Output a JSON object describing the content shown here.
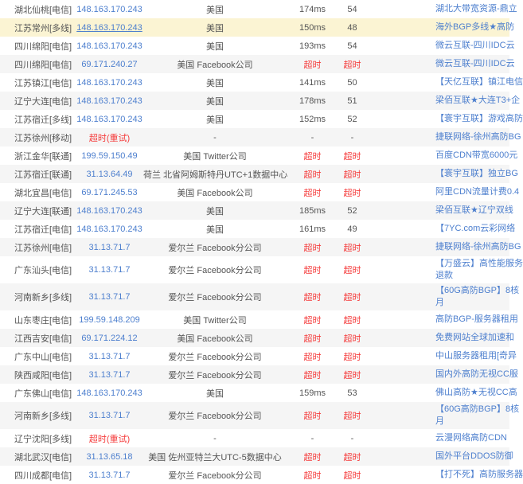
{
  "colors": {
    "link_blue": "#4d7fce",
    "timeout_red": "#f53c3c",
    "row_stripe_gray": "#f5f5f5",
    "row_highlight_yellow": "#fbf4d3",
    "text_gray": "#555555"
  },
  "table": {
    "rows": [
      {
        "monitor": "湖北仙桃[电信]",
        "ip": "148.163.170.243",
        "ip_timeout": false,
        "ip_underline": false,
        "location": "美国",
        "time": "174ms",
        "ttl": "54",
        "sponsor_lines": [
          "湖北大带宽资源-鼎立"
        ],
        "bg": "white",
        "tall": false
      },
      {
        "monitor": "江苏常州[多线]",
        "ip": "148.163.170.243",
        "ip_timeout": false,
        "ip_underline": true,
        "location": "美国",
        "time": "150ms",
        "ttl": "48",
        "sponsor_lines": [
          "海外BGP多线★高防"
        ],
        "bg": "yellow",
        "tall": false
      },
      {
        "monitor": "四川绵阳[电信]",
        "ip": "148.163.170.243",
        "ip_timeout": false,
        "ip_underline": false,
        "location": "美国",
        "time": "193ms",
        "ttl": "54",
        "sponsor_lines": [
          "微云互联-四川IDC云"
        ],
        "bg": "white",
        "tall": false
      },
      {
        "monitor": "四川绵阳[电信]",
        "ip": "69.171.240.27",
        "ip_timeout": false,
        "ip_underline": false,
        "location": "美国 Facebook公司",
        "time": "超时",
        "ttl": "超时",
        "sponsor_lines": [
          "微云互联-四川IDC云"
        ],
        "bg": "gray",
        "tall": false
      },
      {
        "monitor": "江苏镇江[电信]",
        "ip": "148.163.170.243",
        "ip_timeout": false,
        "ip_underline": false,
        "location": "美国",
        "time": "141ms",
        "ttl": "50",
        "sponsor_lines": [
          "【天亿互联】镇江电信"
        ],
        "bg": "white",
        "tall": false
      },
      {
        "monitor": "辽宁大连[电信]",
        "ip": "148.163.170.243",
        "ip_timeout": false,
        "ip_underline": false,
        "location": "美国",
        "time": "178ms",
        "ttl": "51",
        "sponsor_lines": [
          "梁佰互联★大连T3+企"
        ],
        "bg": "gray",
        "tall": false
      },
      {
        "monitor": "江苏宿迁[多线]",
        "ip": "148.163.170.243",
        "ip_timeout": false,
        "ip_underline": false,
        "location": "美国",
        "time": "152ms",
        "ttl": "52",
        "sponsor_lines": [
          "【寰宇互联】游戏高防"
        ],
        "bg": "white",
        "tall": false
      },
      {
        "monitor": "江苏徐州[移动]",
        "ip": "超时(重试)",
        "ip_timeout": true,
        "ip_underline": false,
        "location": "-",
        "time": "-",
        "ttl": "-",
        "sponsor_lines": [
          "捷联网络-徐州高防BG"
        ],
        "bg": "gray",
        "tall": false
      },
      {
        "monitor": "浙江金华[联通]",
        "ip": "199.59.150.49",
        "ip_timeout": false,
        "ip_underline": false,
        "location": "美国 Twitter公司",
        "time": "超时",
        "ttl": "超时",
        "sponsor_lines": [
          "百度CDN带宽6000元"
        ],
        "bg": "white",
        "tall": false
      },
      {
        "monitor": "江苏宿迁[联通]",
        "ip": "31.13.64.49",
        "ip_timeout": false,
        "ip_underline": false,
        "location": "荷兰 北省阿姆斯特丹UTC+1数据中心",
        "time": "超时",
        "ttl": "超时",
        "sponsor_lines": [
          "【寰宇互联】独立BG"
        ],
        "bg": "gray",
        "tall": false
      },
      {
        "monitor": "湖北宜昌[电信]",
        "ip": "69.171.245.53",
        "ip_timeout": false,
        "ip_underline": false,
        "location": "美国 Facebook公司",
        "time": "超时",
        "ttl": "超时",
        "sponsor_lines": [
          "阿里CDN流量计费0.4"
        ],
        "bg": "white",
        "tall": false
      },
      {
        "monitor": "辽宁大连[联通]",
        "ip": "148.163.170.243",
        "ip_timeout": false,
        "ip_underline": false,
        "location": "美国",
        "time": "185ms",
        "ttl": "52",
        "sponsor_lines": [
          "梁佰互联★辽宁双线"
        ],
        "bg": "gray",
        "tall": false
      },
      {
        "monitor": "江苏宿迁[电信]",
        "ip": "148.163.170.243",
        "ip_timeout": false,
        "ip_underline": false,
        "location": "美国",
        "time": "161ms",
        "ttl": "49",
        "sponsor_lines": [
          "【7YC.com云彩网络"
        ],
        "bg": "white",
        "tall": false
      },
      {
        "monitor": "江苏徐州[电信]",
        "ip": "31.13.71.7",
        "ip_timeout": false,
        "ip_underline": false,
        "location": "爱尔兰 Facebook分公司",
        "time": "超时",
        "ttl": "超时",
        "sponsor_lines": [
          "捷联网络-徐州高防BG"
        ],
        "bg": "gray",
        "tall": false
      },
      {
        "monitor": "广东汕头[电信]",
        "ip": "31.13.71.7",
        "ip_timeout": false,
        "ip_underline": false,
        "location": "爱尔兰 Facebook分公司",
        "time": "超时",
        "ttl": "超时",
        "sponsor_lines": [
          "【万盛云】高性能服务",
          "退款"
        ],
        "bg": "white",
        "tall": true
      },
      {
        "monitor": "河南新乡[多线]",
        "ip": "31.13.71.7",
        "ip_timeout": false,
        "ip_underline": false,
        "location": "爱尔兰 Facebook分公司",
        "time": "超时",
        "ttl": "超时",
        "sponsor_lines": [
          "【60G高防BGP】8核",
          "月"
        ],
        "bg": "gray",
        "tall": true
      },
      {
        "monitor": "山东枣庄[电信]",
        "ip": "199.59.148.209",
        "ip_timeout": false,
        "ip_underline": false,
        "location": "美国 Twitter公司",
        "time": "超时",
        "ttl": "超时",
        "sponsor_lines": [
          "高防BGP-服务器租用"
        ],
        "bg": "white",
        "tall": false
      },
      {
        "monitor": "江西吉安[电信]",
        "ip": "69.171.224.12",
        "ip_timeout": false,
        "ip_underline": false,
        "location": "美国 Facebook公司",
        "time": "超时",
        "ttl": "超时",
        "sponsor_lines": [
          "免费网站全球加速和"
        ],
        "bg": "gray",
        "tall": false
      },
      {
        "monitor": "广东中山[电信]",
        "ip": "31.13.71.7",
        "ip_timeout": false,
        "ip_underline": false,
        "location": "爱尔兰 Facebook分公司",
        "time": "超时",
        "ttl": "超时",
        "sponsor_lines": [
          "中山服务器租用[奇异"
        ],
        "bg": "white",
        "tall": false
      },
      {
        "monitor": "陕西咸阳[电信]",
        "ip": "31.13.71.7",
        "ip_timeout": false,
        "ip_underline": false,
        "location": "爱尔兰 Facebook分公司",
        "time": "超时",
        "ttl": "超时",
        "sponsor_lines": [
          "国内外高防无视CC服"
        ],
        "bg": "gray",
        "tall": false
      },
      {
        "monitor": "广东佛山[电信]",
        "ip": "148.163.170.243",
        "ip_timeout": false,
        "ip_underline": false,
        "location": "美国",
        "time": "159ms",
        "ttl": "53",
        "sponsor_lines": [
          "佛山高防★无视CC高"
        ],
        "bg": "white",
        "tall": false
      },
      {
        "monitor": "河南新乡[多线]",
        "ip": "31.13.71.7",
        "ip_timeout": false,
        "ip_underline": false,
        "location": "爱尔兰 Facebook分公司",
        "time": "超时",
        "ttl": "超时",
        "sponsor_lines": [
          "【60G高防BGP】8核",
          "月"
        ],
        "bg": "gray",
        "tall": true
      },
      {
        "monitor": "辽宁沈阳[多线]",
        "ip": "超时(重试)",
        "ip_timeout": true,
        "ip_underline": false,
        "location": "-",
        "time": "-",
        "ttl": "-",
        "sponsor_lines": [
          "云漫网络高防CDN"
        ],
        "bg": "white",
        "tall": false
      },
      {
        "monitor": "湖北武汉[电信]",
        "ip": "31.13.65.18",
        "ip_timeout": false,
        "ip_underline": false,
        "location": "美国 佐州亚特兰大UTC-5数据中心",
        "time": "超时",
        "ttl": "超时",
        "sponsor_lines": [
          "国外平台DDOS防御"
        ],
        "bg": "gray",
        "tall": false
      },
      {
        "monitor": "四川成都[电信]",
        "ip": "31.13.71.7",
        "ip_timeout": false,
        "ip_underline": false,
        "location": "爱尔兰 Facebook分公司",
        "time": "超时",
        "ttl": "超时",
        "sponsor_lines": [
          "【打不死】高防服务器"
        ],
        "bg": "white",
        "tall": false
      }
    ]
  }
}
